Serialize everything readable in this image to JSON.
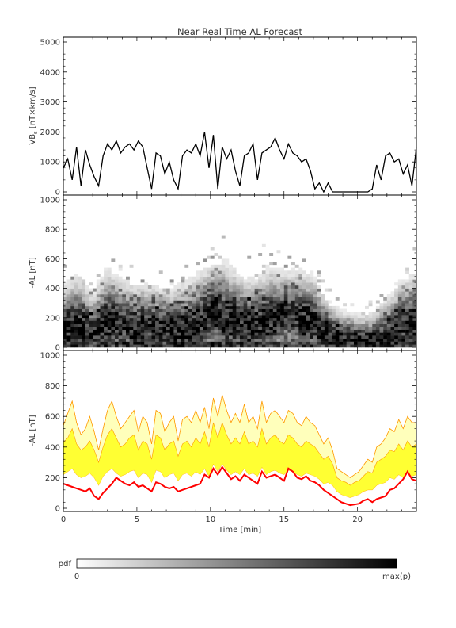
{
  "title": "Near Real Time AL Forecast",
  "colorbar": {
    "label": "pdf",
    "min_label": "0",
    "max_label": "max(p)"
  },
  "chart_data": [
    {
      "type": "line",
      "ylabel_main": "VB",
      "ylabel_sub": "s",
      "ylabel_rest": " [nT×km/s]",
      "xlim": [
        0,
        24
      ],
      "ylim": [
        0,
        5000
      ],
      "yticks": [
        0,
        1000,
        2000,
        3000,
        4000,
        5000
      ],
      "color": "#000000",
      "x": [
        0,
        0.3,
        0.6,
        0.9,
        1.2,
        1.5,
        1.8,
        2.1,
        2.4,
        2.7,
        3.0,
        3.3,
        3.6,
        3.9,
        4.2,
        4.5,
        4.8,
        5.1,
        5.4,
        5.7,
        6.0,
        6.3,
        6.6,
        6.9,
        7.2,
        7.5,
        7.8,
        8.1,
        8.4,
        8.7,
        9.0,
        9.3,
        9.6,
        9.9,
        10.2,
        10.5,
        10.8,
        11.1,
        11.4,
        11.7,
        12.0,
        12.3,
        12.6,
        12.9,
        13.2,
        13.5,
        13.8,
        14.1,
        14.4,
        14.7,
        15.0,
        15.3,
        15.6,
        15.9,
        16.2,
        16.5,
        16.8,
        17.1,
        17.4,
        17.7,
        18.0,
        18.3,
        18.6,
        18.9,
        19.2,
        19.5,
        19.8,
        20.1,
        20.4,
        20.7,
        21.0,
        21.3,
        21.6,
        21.9,
        22.2,
        22.5,
        22.8,
        23.1,
        23.4,
        23.7,
        24.0
      ],
      "y": [
        800,
        1100,
        400,
        1500,
        200,
        1400,
        900,
        500,
        200,
        1200,
        1600,
        1400,
        1700,
        1300,
        1500,
        1600,
        1400,
        1700,
        1500,
        800,
        100,
        1300,
        1200,
        600,
        1000,
        400,
        100,
        1200,
        1400,
        1300,
        1600,
        1200,
        2000,
        800,
        1900,
        100,
        1500,
        1100,
        1400,
        700,
        200,
        1200,
        1300,
        1600,
        400,
        1300,
        1400,
        1500,
        1800,
        1400,
        1100,
        1600,
        1300,
        1200,
        1000,
        1100,
        700,
        100,
        300,
        0,
        300,
        0,
        0,
        0,
        0,
        0,
        0,
        0,
        0,
        0,
        100,
        900,
        400,
        1200,
        1300,
        1000,
        1100,
        600,
        900,
        200,
        1500
      ]
    },
    {
      "type": "heatmap",
      "ylabel": "-AL [nT]",
      "xlim": [
        0,
        24
      ],
      "ylim": [
        0,
        1000
      ],
      "yticks": [
        0,
        200,
        400,
        600,
        800,
        1000
      ],
      "hour_x": [
        0,
        1,
        2,
        3,
        4,
        5,
        6,
        7,
        8,
        9,
        10,
        11,
        12,
        13,
        14,
        15,
        16,
        17,
        18,
        19,
        20,
        21,
        22,
        23,
        24
      ],
      "median_al": [
        130,
        150,
        100,
        170,
        160,
        140,
        150,
        130,
        110,
        150,
        250,
        190,
        170,
        150,
        180,
        240,
        210,
        160,
        90,
        60,
        40,
        30,
        60,
        150,
        180
      ],
      "upper_al": [
        500,
        600,
        450,
        650,
        550,
        520,
        500,
        480,
        520,
        600,
        650,
        700,
        600,
        560,
        650,
        600,
        620,
        600,
        380,
        300,
        280,
        300,
        420,
        550,
        600
      ]
    },
    {
      "type": "area",
      "ylabel": "-AL [nT]",
      "xlabel": "Time [min]",
      "xlim": [
        0,
        24
      ],
      "ylim": [
        0,
        1000
      ],
      "yticks": [
        0,
        200,
        400,
        600,
        800,
        1000
      ],
      "xticks": [
        0,
        5,
        10,
        15,
        20
      ],
      "x": [
        0,
        0.3,
        0.6,
        0.9,
        1.2,
        1.5,
        1.8,
        2.1,
        2.4,
        2.7,
        3.0,
        3.3,
        3.6,
        3.9,
        4.2,
        4.5,
        4.8,
        5.1,
        5.4,
        5.7,
        6.0,
        6.3,
        6.6,
        6.9,
        7.2,
        7.5,
        7.8,
        8.1,
        8.4,
        8.7,
        9.0,
        9.3,
        9.6,
        9.9,
        10.2,
        10.5,
        10.8,
        11.1,
        11.4,
        11.7,
        12.0,
        12.3,
        12.6,
        12.9,
        13.2,
        13.5,
        13.8,
        14.1,
        14.4,
        14.7,
        15.0,
        15.3,
        15.6,
        15.9,
        16.2,
        16.5,
        16.8,
        17.1,
        17.4,
        17.7,
        18.0,
        18.3,
        18.6,
        18.9,
        19.2,
        19.5,
        19.8,
        20.1,
        20.4,
        20.7,
        21.0,
        21.3,
        21.6,
        21.9,
        22.2,
        22.5,
        22.8,
        23.1,
        23.4,
        23.7,
        24.0
      ],
      "band_outer_upper": [
        540,
        620,
        700,
        560,
        480,
        520,
        600,
        500,
        380,
        520,
        640,
        700,
        600,
        520,
        560,
        600,
        640,
        500,
        600,
        560,
        420,
        640,
        620,
        500,
        560,
        600,
        440,
        580,
        600,
        560,
        640,
        560,
        660,
        520,
        720,
        600,
        740,
        640,
        560,
        620,
        560,
        680,
        560,
        600,
        520,
        700,
        560,
        620,
        640,
        600,
        560,
        640,
        620,
        560,
        540,
        600,
        560,
        540,
        480,
        420,
        460,
        380,
        260,
        240,
        220,
        200,
        220,
        240,
        280,
        320,
        300,
        400,
        420,
        460,
        520,
        500,
        580,
        520,
        600,
        560,
        560
      ],
      "band_inner_upper": [
        430,
        460,
        520,
        420,
        380,
        400,
        440,
        380,
        300,
        400,
        480,
        520,
        460,
        400,
        420,
        460,
        480,
        380,
        440,
        420,
        320,
        480,
        460,
        380,
        420,
        440,
        340,
        420,
        440,
        400,
        460,
        420,
        500,
        400,
        560,
        460,
        560,
        480,
        420,
        460,
        420,
        500,
        420,
        440,
        400,
        520,
        420,
        460,
        480,
        440,
        420,
        480,
        460,
        420,
        400,
        440,
        420,
        400,
        360,
        320,
        340,
        290,
        200,
        180,
        170,
        150,
        170,
        180,
        210,
        240,
        230,
        300,
        320,
        340,
        380,
        370,
        420,
        380,
        440,
        400,
        420
      ],
      "band_inner_lower": [
        220,
        240,
        260,
        220,
        200,
        210,
        230,
        200,
        150,
        210,
        240,
        260,
        230,
        210,
        220,
        240,
        250,
        200,
        230,
        220,
        170,
        250,
        240,
        200,
        220,
        230,
        180,
        220,
        230,
        210,
        240,
        220,
        260,
        210,
        290,
        240,
        290,
        250,
        220,
        240,
        220,
        260,
        220,
        230,
        210,
        270,
        220,
        240,
        250,
        230,
        220,
        250,
        240,
        220,
        210,
        230,
        220,
        210,
        190,
        160,
        170,
        150,
        110,
        90,
        80,
        70,
        80,
        90,
        110,
        120,
        120,
        150,
        160,
        170,
        200,
        190,
        220,
        200,
        230,
        210,
        220
      ],
      "median": [
        160,
        150,
        140,
        130,
        120,
        110,
        130,
        80,
        60,
        100,
        130,
        160,
        200,
        180,
        160,
        150,
        170,
        140,
        150,
        130,
        110,
        170,
        160,
        140,
        130,
        140,
        110,
        120,
        130,
        140,
        150,
        160,
        220,
        200,
        260,
        220,
        270,
        230,
        190,
        210,
        180,
        220,
        200,
        180,
        160,
        240,
        200,
        210,
        220,
        200,
        180,
        260,
        240,
        200,
        190,
        210,
        180,
        170,
        150,
        120,
        100,
        80,
        60,
        40,
        30,
        20,
        25,
        30,
        50,
        60,
        40,
        60,
        70,
        80,
        120,
        130,
        160,
        190,
        240,
        190,
        180
      ],
      "colors": {
        "median": "#ff0000",
        "inner_band": "#ffff33",
        "outer_band": "#ffffbb",
        "band_edge": "#ff9900"
      }
    }
  ]
}
